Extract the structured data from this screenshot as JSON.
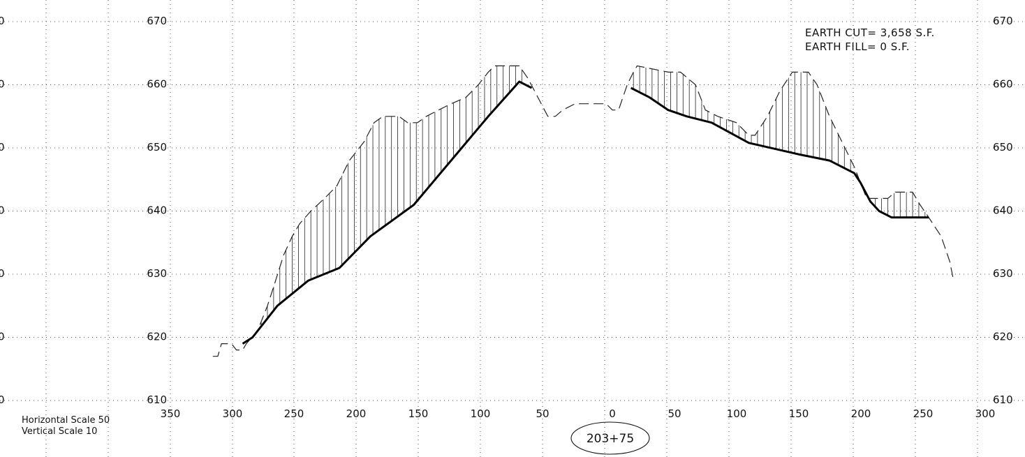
{
  "notes": {
    "earth_cut": "EARTH CUT= 3,658 S.F.",
    "earth_fill": "EARTH FILL= 0 S.F."
  },
  "scales": {
    "horizontal": "Horizontal Scale 50",
    "vertical": "Vertical Scale 10"
  },
  "station": "203+75",
  "left_edge_labels": [
    "0",
    "0",
    "0",
    "0",
    "0",
    "0",
    "0"
  ],
  "chart_data": {
    "type": "line",
    "x_ticks_left": [
      "350",
      "300",
      "250",
      "200",
      "150",
      "100",
      "50"
    ],
    "x_ticks_right": [
      "0",
      "50",
      "100",
      "150",
      "200",
      "250",
      "300"
    ],
    "y_ticks": [
      "670",
      "660",
      "650",
      "640",
      "630",
      "620",
      "610"
    ],
    "y_range": [
      610,
      670
    ],
    "x_range": [
      -350,
      300
    ],
    "grid": true,
    "series": [
      {
        "style": "dashed",
        "points": [
          [
            -322,
            617
          ],
          [
            -318,
            617
          ],
          [
            -315,
            619
          ],
          [
            -307,
            619
          ],
          [
            -303,
            618
          ],
          [
            -298,
            618
          ],
          [
            -295,
            619
          ],
          [
            -286,
            621
          ],
          [
            -278,
            625
          ],
          [
            -273,
            628
          ],
          [
            -265,
            633
          ],
          [
            -258,
            636
          ],
          [
            -252,
            638
          ],
          [
            -243,
            640
          ],
          [
            -232,
            642
          ],
          [
            -222,
            644
          ],
          [
            -212,
            648
          ],
          [
            -200,
            651
          ],
          [
            -192,
            654
          ],
          [
            -185,
            655
          ],
          [
            -172,
            655
          ],
          [
            -165,
            654
          ],
          [
            -157,
            654
          ],
          [
            -150,
            655
          ],
          [
            -140,
            656
          ],
          [
            -130,
            657
          ],
          [
            -118,
            658
          ],
          [
            -108,
            660
          ],
          [
            -100,
            662
          ],
          [
            -95,
            663
          ],
          [
            -75,
            663
          ],
          [
            -68,
            661
          ],
          [
            -60,
            658
          ],
          [
            -52,
            655
          ],
          [
            -46,
            655
          ],
          [
            -40,
            656
          ],
          [
            -30,
            657
          ],
          [
            -5,
            657
          ],
          [
            0,
            656
          ],
          [
            5,
            656
          ],
          [
            12,
            660
          ],
          [
            17,
            662
          ],
          [
            20,
            663
          ],
          [
            45,
            662
          ],
          [
            55,
            662
          ],
          [
            67,
            660
          ],
          [
            75,
            656
          ],
          [
            85,
            655
          ],
          [
            100,
            654
          ],
          [
            110,
            652
          ],
          [
            115,
            652
          ],
          [
            125,
            655
          ],
          [
            135,
            659
          ],
          [
            145,
            662
          ],
          [
            158,
            662
          ],
          [
            165,
            660
          ],
          [
            175,
            655
          ],
          [
            185,
            651
          ],
          [
            195,
            647
          ],
          [
            205,
            642
          ],
          [
            212,
            642
          ],
          [
            222,
            642
          ],
          [
            228,
            643
          ],
          [
            242,
            643
          ],
          [
            248,
            641
          ],
          [
            255,
            639
          ],
          [
            265,
            636
          ],
          [
            272,
            632
          ],
          [
            275,
            629
          ]
        ]
      },
      {
        "style": "solid-heavy",
        "points": [
          [
            -298,
            619
          ],
          [
            -290,
            620
          ],
          [
            -270,
            625
          ],
          [
            -245,
            629
          ],
          [
            -220,
            631
          ],
          [
            -195,
            636
          ],
          [
            -160,
            641
          ],
          [
            -130,
            648
          ],
          [
            -100,
            655
          ],
          [
            -75,
            660.5
          ],
          [
            -70,
            660
          ],
          [
            -65,
            659.5
          ],
          [
            15,
            659.5
          ],
          [
            30,
            658
          ],
          [
            45,
            656
          ],
          [
            60,
            655
          ],
          [
            80,
            654
          ],
          [
            110,
            650.8
          ],
          [
            150,
            649
          ],
          [
            175,
            648
          ],
          [
            195,
            646
          ],
          [
            200,
            644.5
          ],
          [
            208,
            641.5
          ],
          [
            215,
            640
          ],
          [
            225,
            639
          ],
          [
            255,
            639
          ]
        ]
      }
    ]
  }
}
